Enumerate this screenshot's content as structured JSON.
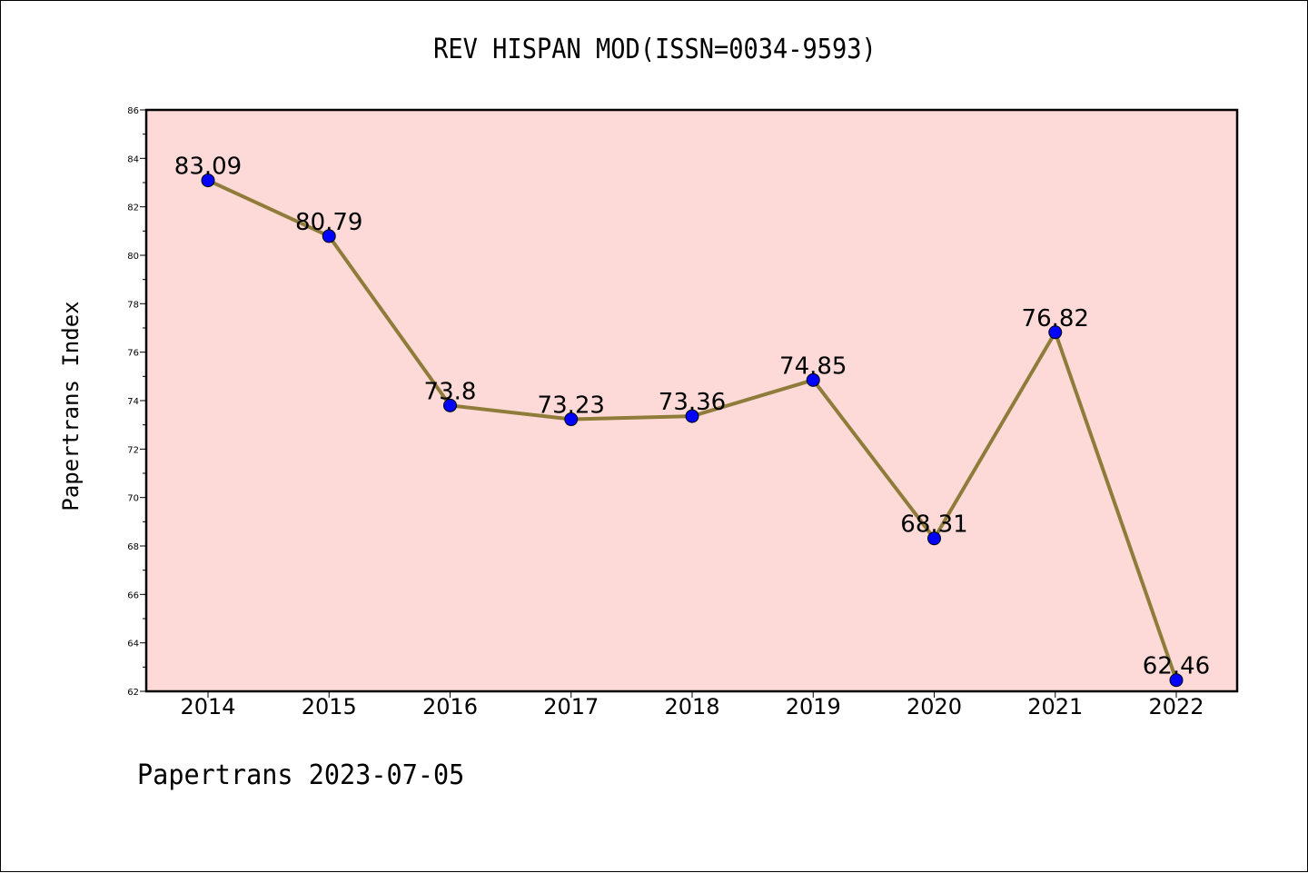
{
  "chart_data": {
    "type": "line",
    "title": "REV HISPAN MOD(ISSN=0034-9593)",
    "xlabel": "",
    "ylabel": "Papertrans Index",
    "x": [
      "2014",
      "2015",
      "2016",
      "2017",
      "2018",
      "2019",
      "2020",
      "2021",
      "2022"
    ],
    "series": [
      {
        "values": [
          83.09,
          80.79,
          73.8,
          73.23,
          73.36,
          74.85,
          68.31,
          76.82,
          62.46
        ],
        "labels": [
          "83.09",
          "80.79",
          "73.8",
          "73.23",
          "73.36",
          "74.85",
          "68.31",
          "76.82",
          "62.46"
        ]
      }
    ],
    "ylim": [
      62,
      86
    ],
    "yticks": [
      62,
      64,
      66,
      68,
      70,
      72,
      74,
      76,
      78,
      80,
      82,
      84,
      86
    ],
    "grid": false,
    "line_color": "#8f7c3a",
    "marker_color": "#0000ff",
    "plot_background": "#fddad7"
  },
  "footer": "Papertrans 2023-07-05"
}
